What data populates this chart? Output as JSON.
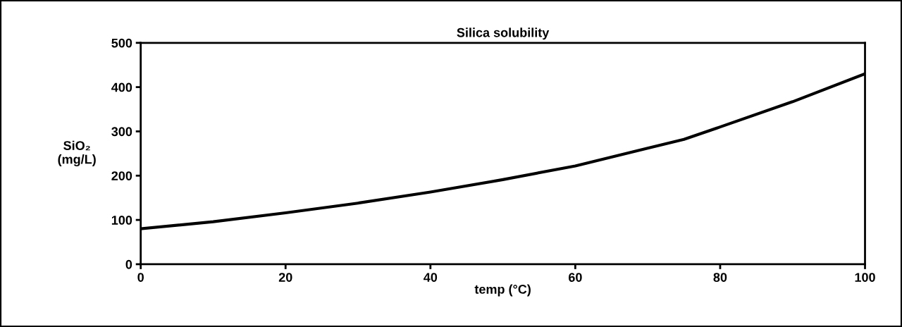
{
  "chart_data": {
    "type": "line",
    "title": "Silica solubility",
    "xlabel": "temp (°C)",
    "ylabel": "SiO₂\n(mg/L)",
    "series": [
      {
        "color": "#000000",
        "x": [
          0,
          10,
          20,
          30,
          40,
          50,
          60,
          70,
          75,
          80,
          90,
          100
        ],
        "values": [
          80,
          96,
          116,
          138,
          163,
          191,
          222,
          262,
          282,
          310,
          367,
          430
        ]
      }
    ],
    "xlim": [
      0,
      100
    ],
    "xticks": [
      0,
      20,
      40,
      60,
      80,
      100
    ],
    "ylim": [
      0,
      500
    ],
    "yticks": [
      0,
      100,
      200,
      300,
      400,
      500
    ],
    "grid": false,
    "legend": false,
    "marker": "none",
    "line_style": "solid"
  }
}
